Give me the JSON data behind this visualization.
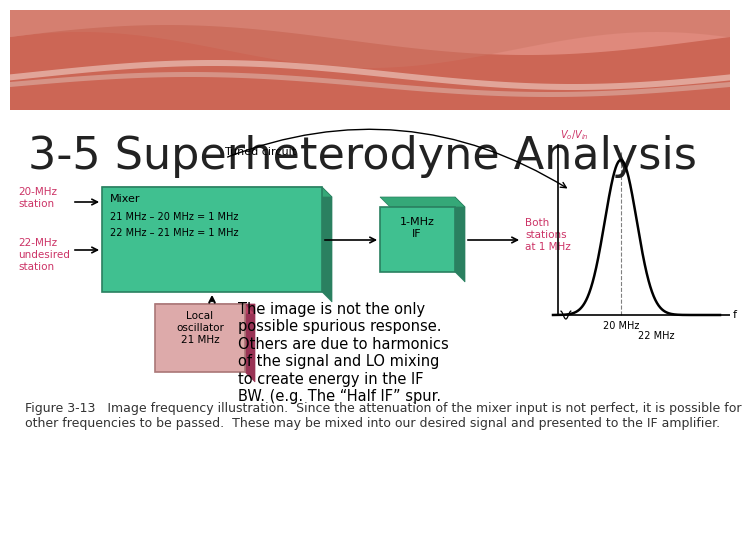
{
  "title": "3-5 Superheterodyne Analysis",
  "title_fontsize": 32,
  "title_color": "#222222",
  "figure_bg": "#ffffff",
  "caption": "Figure 3-13   Image frequency illustration.  Since the attenuation of the mixer input is not perfect, it is possible for\nother frequencies to be passed.  These may be mixed into our desired signal and presented to the IF amplifier.",
  "caption_fontsize": 9,
  "annotation_text": "The image is not the only\npossible spurious response.\nOthers are due to harmonics\nof the signal and LO mixing\nto create energy in the IF\nBW. (e.g. The “Half IF” spur.",
  "annotation_fontsize": 10.5,
  "label_20mhz": "20-MHz\nstation",
  "label_22mhz": "22-MHz\nundesired\nstation",
  "label_both": "Both\nstations\nat 1 MHz",
  "label_tuned": "Tuned circuit",
  "label_mixer": "Mixer",
  "label_mixer_eq1": "21 MHz – 20 MHz = 1 MHz",
  "label_mixer_eq2": "22 MHz – 21 MHz = 1 MHz",
  "label_if": "1-MHz\nIF",
  "label_lo": "Local\noscillator\n21 MHz",
  "label_vo_vin": "$V_o/V_{in}$",
  "label_f": "f",
  "label_20mhz_x": "20 MHz",
  "label_22mhz_x": "22 MHz",
  "mixer_color": "#40c090",
  "mixer_dark": "#2a8060",
  "lo_color": "#ddaaaa",
  "lo_dark": "#993355",
  "pink_label_color": "#cc3366",
  "header_color": "#cc6655",
  "wave_color1": "#e8998d",
  "wave_color2": "#cc7766",
  "swoosh_color": "#f0d0c8",
  "swoosh_color2": "#e0c0b8"
}
